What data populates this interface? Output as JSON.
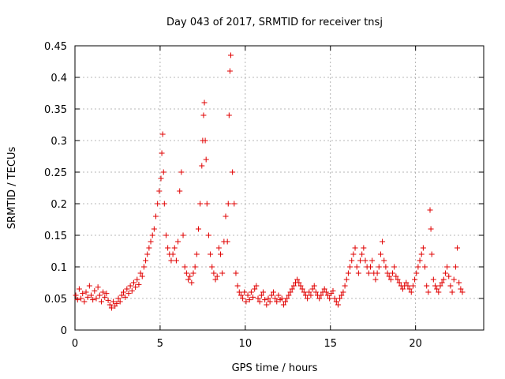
{
  "chart_data": {
    "type": "scatter",
    "title": "Day 043 of 2017, SRMTID for receiver tnsj",
    "xlabel": "GPS time / hours",
    "ylabel": "SRMTID / TECUs",
    "xlim": [
      0,
      24
    ],
    "ylim": [
      0,
      0.45
    ],
    "x_ticks": [
      0,
      5,
      10,
      15,
      20
    ],
    "y_ticks": [
      0,
      0.05,
      0.1,
      0.15,
      0.2,
      0.25,
      0.3,
      0.35,
      0.4,
      0.45
    ],
    "x_tick_labels": [
      "0",
      "5",
      "10",
      "15",
      "20"
    ],
    "y_tick_labels": [
      "0",
      "0.05",
      "0.1",
      "0.15",
      "0.2",
      "0.25",
      "0.3",
      "0.35",
      "0.4",
      "0.45"
    ],
    "grid": true,
    "marker": "+",
    "marker_color": "#e00000",
    "points_x": [
      0.05,
      0.15,
      0.25,
      0.35,
      0.45,
      0.55,
      0.65,
      0.75,
      0.85,
      0.95,
      1.05,
      1.15,
      1.25,
      1.35,
      1.45,
      1.55,
      1.65,
      1.75,
      1.85,
      1.95,
      2.05,
      2.15,
      2.25,
      2.35,
      2.45,
      2.55,
      2.65,
      2.75,
      2.85,
      2.95,
      3.05,
      3.15,
      3.25,
      3.35,
      3.45,
      3.55,
      3.65,
      3.75,
      3.85,
      3.95,
      4.05,
      4.15,
      4.25,
      4.35,
      4.45,
      4.55,
      4.65,
      4.75,
      4.85,
      4.95,
      5.05,
      5.1,
      5.15,
      5.2,
      5.25,
      5.35,
      5.45,
      5.55,
      5.65,
      5.75,
      5.85,
      5.95,
      6.05,
      6.15,
      6.25,
      6.35,
      6.45,
      6.55,
      6.65,
      6.75,
      6.85,
      6.95,
      7.05,
      7.15,
      7.25,
      7.35,
      7.45,
      7.5,
      7.55,
      7.6,
      7.65,
      7.7,
      7.75,
      7.85,
      7.95,
      8.05,
      8.15,
      8.25,
      8.35,
      8.45,
      8.55,
      8.65,
      8.75,
      8.85,
      8.95,
      9.0,
      9.05,
      9.1,
      9.15,
      9.25,
      9.35,
      9.45,
      9.55,
      9.65,
      9.75,
      9.85,
      9.95,
      10.05,
      10.15,
      10.25,
      10.35,
      10.45,
      10.55,
      10.65,
      10.75,
      10.85,
      10.95,
      11.05,
      11.15,
      11.25,
      11.35,
      11.45,
      11.55,
      11.65,
      11.75,
      11.85,
      11.95,
      12.05,
      12.15,
      12.25,
      12.35,
      12.45,
      12.55,
      12.65,
      12.75,
      12.85,
      12.95,
      13.05,
      13.15,
      13.25,
      13.35,
      13.45,
      13.55,
      13.65,
      13.75,
      13.85,
      13.95,
      14.05,
      14.15,
      14.25,
      14.35,
      14.45,
      14.55,
      14.65,
      14.75,
      14.85,
      14.95,
      15.05,
      15.15,
      15.25,
      15.35,
      15.45,
      15.55,
      15.65,
      15.75,
      15.85,
      15.95,
      16.05,
      16.15,
      16.25,
      16.35,
      16.45,
      16.55,
      16.65,
      16.75,
      16.85,
      16.95,
      17.05,
      17.15,
      17.25,
      17.35,
      17.45,
      17.55,
      17.65,
      17.75,
      17.85,
      17.95,
      18.05,
      18.15,
      18.25,
      18.35,
      18.45,
      18.55,
      18.65,
      18.75,
      18.85,
      18.95,
      19.05,
      19.15,
      19.25,
      19.35,
      19.45,
      19.55,
      19.65,
      19.75,
      19.85,
      19.95,
      20.05,
      20.15,
      20.25,
      20.35,
      20.45,
      20.55,
      20.65,
      20.75,
      20.85,
      20.9,
      20.95,
      21.05,
      21.15,
      21.25,
      21.35,
      21.45,
      21.55,
      21.65,
      21.75,
      21.85,
      21.95,
      22.05,
      22.15,
      22.25,
      22.35,
      22.45,
      22.55,
      22.65,
      22.75
    ],
    "points_y": [
      0.055,
      0.048,
      0.065,
      0.05,
      0.058,
      0.045,
      0.06,
      0.052,
      0.07,
      0.055,
      0.048,
      0.062,
      0.05,
      0.068,
      0.055,
      0.045,
      0.06,
      0.052,
      0.058,
      0.047,
      0.04,
      0.035,
      0.045,
      0.038,
      0.042,
      0.05,
      0.045,
      0.055,
      0.06,
      0.052,
      0.065,
      0.058,
      0.07,
      0.062,
      0.075,
      0.068,
      0.08,
      0.072,
      0.09,
      0.085,
      0.1,
      0.11,
      0.12,
      0.13,
      0.14,
      0.15,
      0.16,
      0.18,
      0.2,
      0.22,
      0.24,
      0.28,
      0.31,
      0.25,
      0.2,
      0.15,
      0.13,
      0.12,
      0.11,
      0.12,
      0.13,
      0.11,
      0.14,
      0.22,
      0.25,
      0.15,
      0.1,
      0.09,
      0.08,
      0.085,
      0.075,
      0.09,
      0.1,
      0.12,
      0.16,
      0.2,
      0.26,
      0.3,
      0.34,
      0.36,
      0.3,
      0.27,
      0.2,
      0.15,
      0.12,
      0.1,
      0.09,
      0.08,
      0.085,
      0.13,
      0.12,
      0.09,
      0.14,
      0.18,
      0.14,
      0.2,
      0.34,
      0.41,
      0.435,
      0.25,
      0.2,
      0.09,
      0.07,
      0.06,
      0.055,
      0.05,
      0.06,
      0.045,
      0.055,
      0.048,
      0.06,
      0.052,
      0.065,
      0.07,
      0.05,
      0.045,
      0.055,
      0.06,
      0.048,
      0.04,
      0.05,
      0.045,
      0.055,
      0.06,
      0.05,
      0.045,
      0.055,
      0.048,
      0.05,
      0.04,
      0.045,
      0.05,
      0.055,
      0.06,
      0.065,
      0.07,
      0.075,
      0.08,
      0.075,
      0.07,
      0.065,
      0.06,
      0.055,
      0.05,
      0.06,
      0.055,
      0.065,
      0.07,
      0.06,
      0.055,
      0.05,
      0.055,
      0.06,
      0.065,
      0.06,
      0.055,
      0.05,
      0.058,
      0.062,
      0.05,
      0.045,
      0.04,
      0.05,
      0.055,
      0.06,
      0.07,
      0.08,
      0.09,
      0.1,
      0.11,
      0.12,
      0.13,
      0.1,
      0.09,
      0.11,
      0.12,
      0.13,
      0.11,
      0.1,
      0.09,
      0.1,
      0.11,
      0.09,
      0.08,
      0.09,
      0.1,
      0.12,
      0.14,
      0.11,
      0.1,
      0.09,
      0.085,
      0.08,
      0.09,
      0.1,
      0.085,
      0.08,
      0.075,
      0.07,
      0.065,
      0.07,
      0.075,
      0.07,
      0.065,
      0.06,
      0.07,
      0.08,
      0.09,
      0.1,
      0.11,
      0.12,
      0.13,
      0.1,
      0.07,
      0.06,
      0.19,
      0.16,
      0.12,
      0.08,
      0.07,
      0.065,
      0.06,
      0.07,
      0.075,
      0.08,
      0.09,
      0.1,
      0.085,
      0.07,
      0.06,
      0.08,
      0.1,
      0.13,
      0.075,
      0.065,
      0.06
    ]
  }
}
